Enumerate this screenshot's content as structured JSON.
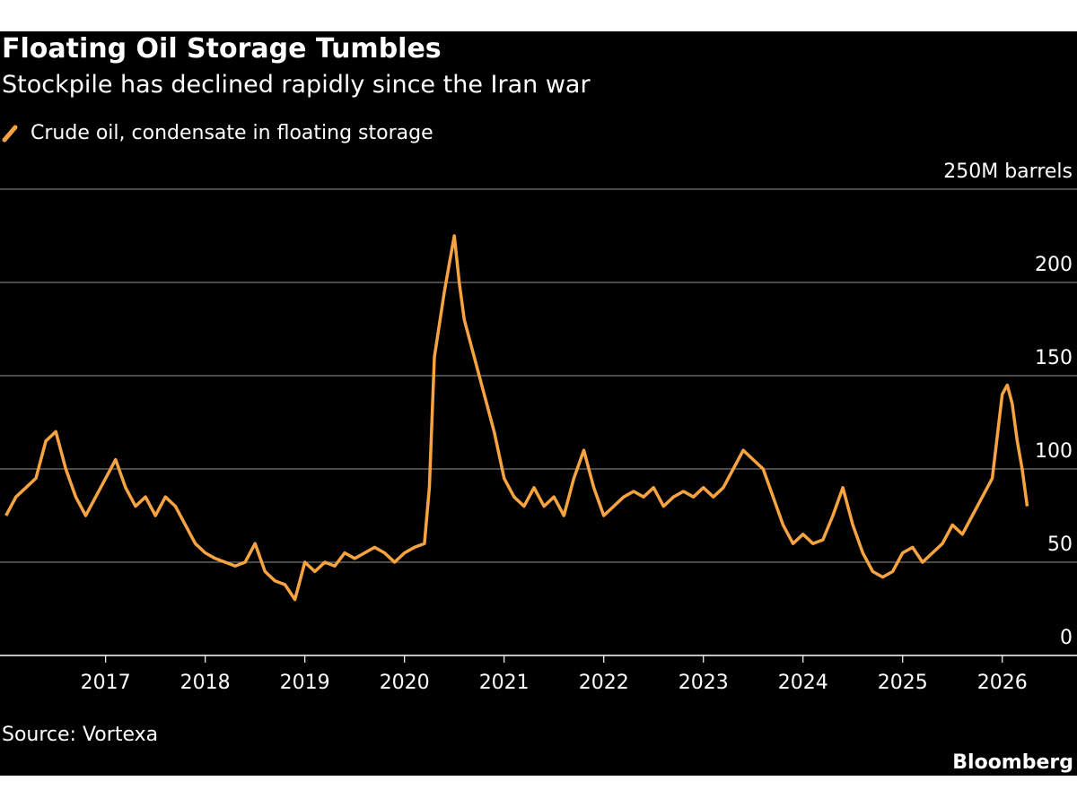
{
  "chart_data": {
    "type": "line",
    "title": "Floating Oil Storage Tumbles",
    "subtitle": "Stockpile has declined rapidly since the Iran war",
    "source": "Source: Vortexa",
    "logo": "Bloomberg",
    "x": [
      2016.0,
      2016.1,
      2016.2,
      2016.3,
      2016.4,
      2016.5,
      2016.6,
      2016.7,
      2016.8,
      2016.9,
      2017.0,
      2017.1,
      2017.2,
      2017.3,
      2017.4,
      2017.5,
      2017.6,
      2017.7,
      2017.8,
      2017.9,
      2018.0,
      2018.1,
      2018.2,
      2018.3,
      2018.4,
      2018.5,
      2018.6,
      2018.7,
      2018.8,
      2018.9,
      2019.0,
      2019.1,
      2019.2,
      2019.3,
      2019.4,
      2019.5,
      2019.6,
      2019.7,
      2019.8,
      2019.9,
      2020.0,
      2020.1,
      2020.2,
      2020.25,
      2020.3,
      2020.4,
      2020.45,
      2020.5,
      2020.55,
      2020.6,
      2020.7,
      2020.8,
      2020.9,
      2021.0,
      2021.1,
      2021.2,
      2021.3,
      2021.4,
      2021.5,
      2021.6,
      2021.7,
      2021.8,
      2021.9,
      2022.0,
      2022.1,
      2022.2,
      2022.3,
      2022.4,
      2022.5,
      2022.6,
      2022.7,
      2022.8,
      2022.9,
      2023.0,
      2023.1,
      2023.2,
      2023.3,
      2023.4,
      2023.5,
      2023.6,
      2023.7,
      2023.8,
      2023.9,
      2024.0,
      2024.1,
      2024.2,
      2024.3,
      2024.4,
      2024.5,
      2024.6,
      2024.7,
      2024.8,
      2024.9,
      2025.0,
      2025.1,
      2025.2,
      2025.3,
      2025.4,
      2025.5,
      2025.6,
      2025.7,
      2025.8,
      2025.9,
      2026.0,
      2026.05,
      2026.1,
      2026.15,
      2026.2,
      2026.25
    ],
    "series": [
      {
        "name": "Crude oil, condensate in floating storage",
        "color": "#f7a440",
        "values": [
          75,
          85,
          90,
          95,
          115,
          120,
          100,
          85,
          75,
          85,
          95,
          105,
          90,
          80,
          85,
          75,
          85,
          80,
          70,
          60,
          55,
          52,
          50,
          48,
          50,
          60,
          45,
          40,
          38,
          30,
          50,
          45,
          50,
          48,
          55,
          52,
          55,
          58,
          55,
          50,
          55,
          58,
          60,
          90,
          160,
          195,
          210,
          225,
          200,
          180,
          160,
          140,
          120,
          95,
          85,
          80,
          90,
          80,
          85,
          75,
          95,
          110,
          90,
          75,
          80,
          85,
          88,
          85,
          90,
          80,
          85,
          88,
          85,
          90,
          85,
          90,
          100,
          110,
          105,
          100,
          85,
          70,
          60,
          65,
          60,
          62,
          75,
          90,
          70,
          55,
          45,
          42,
          45,
          55,
          58,
          50,
          55,
          60,
          70,
          65,
          75,
          85,
          95,
          140,
          145,
          135,
          115,
          100,
          80
        ]
      }
    ],
    "xlim": [
      2015.94,
      2026.75
    ],
    "xticks": [
      2017,
      2018,
      2019,
      2020,
      2021,
      2022,
      2023,
      2024,
      2025,
      2026
    ],
    "ylim": [
      0,
      250
    ],
    "yticks": [
      0,
      50,
      100,
      150,
      200,
      {
        "value": 250,
        "label": "250M barrels"
      }
    ],
    "grid": true,
    "legend": "top-left"
  }
}
